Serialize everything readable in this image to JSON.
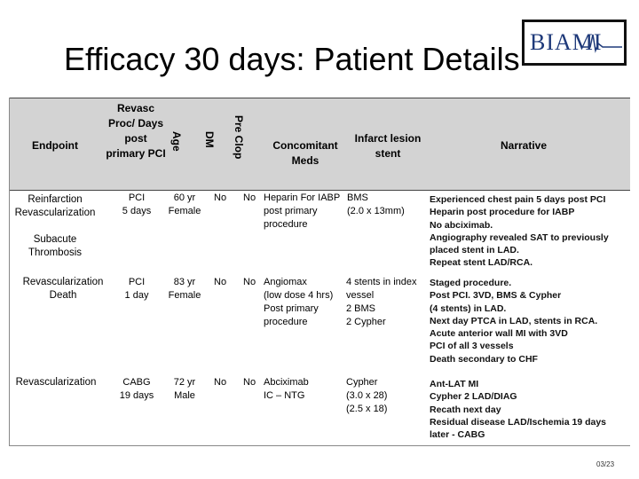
{
  "title": "Efficacy 30 days: Patient Details",
  "logo": {
    "text": "BIAMI"
  },
  "headers": {
    "endpoint": "Endpoint",
    "revasc": "Revasc Proc/ Days post primary PCI",
    "age": "Age",
    "dm": "DM",
    "preclop": "Pre Clop",
    "meds": "Concomitant Meds",
    "stent": "Infarct lesion stent",
    "narrative": "Narrative"
  },
  "rows": [
    {
      "endpoint": "Reinfarction\nRevascularization\n\nSubacute\nThrombosis",
      "revasc": "PCI\n5 days",
      "age": "60 yr\nFemale",
      "dm": "No",
      "preclop": "No",
      "meds": "Heparin For IABP\npost primary\nprocedure",
      "stent": "BMS\n(2.0 x 13mm)",
      "narrative": "Experienced chest pain 5 days post PCI\nHeparin post procedure for IABP\nNo abciximab.\nAngiography revealed SAT to previously placed stent in LAD.\nRepeat stent LAD/RCA."
    },
    {
      "endpoint": "Revascularization\nDeath",
      "revasc": "PCI\n1 day",
      "age": "83 yr\nFemale",
      "dm": "No",
      "preclop": "No",
      "meds": "Angiomax\n(low dose 4 hrs)\nPost primary\nprocedure",
      "stent": "4 stents in index\nvessel\n2 BMS\n2 Cypher",
      "narrative": "Staged procedure.\nPost PCI. 3VD, BMS & Cypher\n(4 stents) in LAD.\nNext day PTCA in LAD, stents in RCA.\nAcute anterior wall MI with 3VD\nPCI of all 3 vessels\nDeath secondary to CHF"
    },
    {
      "endpoint": "Revascularization",
      "revasc": "CABG\n19 days",
      "age": "72 yr\nMale",
      "dm": "No",
      "preclop": "No",
      "meds": "Abciximab\nIC – NTG",
      "stent": "Cypher\n(3.0 x 28)\n(2.5 x 18)",
      "narrative": "Ant-LAT MI\nCypher 2 LAD/DIAG\nRecath next day\nResidual disease LAD/Ischemia 19 days later - CABG"
    }
  ],
  "page_number": "03/23",
  "colors": {
    "header_band": "#d3d3d3",
    "logo_text": "#1f3a7a"
  }
}
